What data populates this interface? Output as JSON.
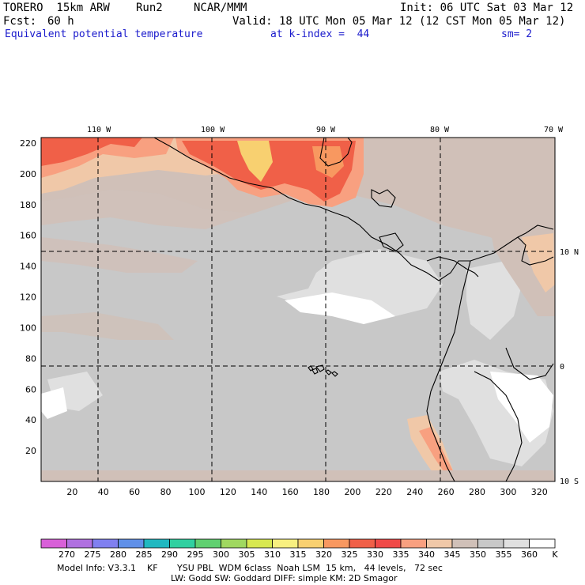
{
  "header": {
    "model": "TORERO  15km ARW",
    "run": "Run2",
    "center": "NCAR/MMM",
    "init": "Init: 06 UTC Sat 03 Mar 12",
    "fcst_label": "Fcst:",
    "fcst_value": "60 h",
    "valid": "Valid: 18 UTC Mon 05 Mar 12 (12 CST Mon 05 Mar 12)",
    "field": "Equivalent potential temperature",
    "level": "at k-index =  44",
    "smooth": "sm= 2"
  },
  "map": {
    "lon_labels": [
      "110 W",
      "100 W",
      "90 W",
      "80 W",
      "70 W"
    ],
    "lat_labels": [
      "10 N",
      "0",
      "10 S"
    ],
    "y_ticks": [
      "20",
      "40",
      "60",
      "80",
      "100",
      "120",
      "140",
      "160",
      "180",
      "200",
      "220"
    ],
    "x_ticks": [
      "20",
      "40",
      "60",
      "80",
      "100",
      "120",
      "140",
      "160",
      "180",
      "200",
      "220",
      "240",
      "260",
      "280",
      "300",
      "320"
    ]
  },
  "colorbar": {
    "values": [
      "270",
      "275",
      "280",
      "285",
      "290",
      "295",
      "300",
      "305",
      "310",
      "315",
      "320",
      "325",
      "330",
      "335",
      "340",
      "345",
      "350",
      "355",
      "360"
    ],
    "unit": "K",
    "colors": [
      "#d860d8",
      "#b070e0",
      "#8080f0",
      "#6090e8",
      "#20b8c0",
      "#30d0a0",
      "#60d070",
      "#a0d860",
      "#d8e850",
      "#f8f080",
      "#f8d070",
      "#f89860",
      "#f06048",
      "#f04a48",
      "#f8a080",
      "#f0c8a8",
      "#d0c0b8",
      "#c8c8c8",
      "#e0e0e0",
      "#ffffff"
    ]
  },
  "footer": {
    "line1": "Model Info: V3.3.1    KF       YSU PBL  WDM 6class  Noah LSM  15 km,   44 levels,   72 sec",
    "line2": "LW: Godd SW: Goddard DIFF: simple KM: 2D Smagor"
  }
}
